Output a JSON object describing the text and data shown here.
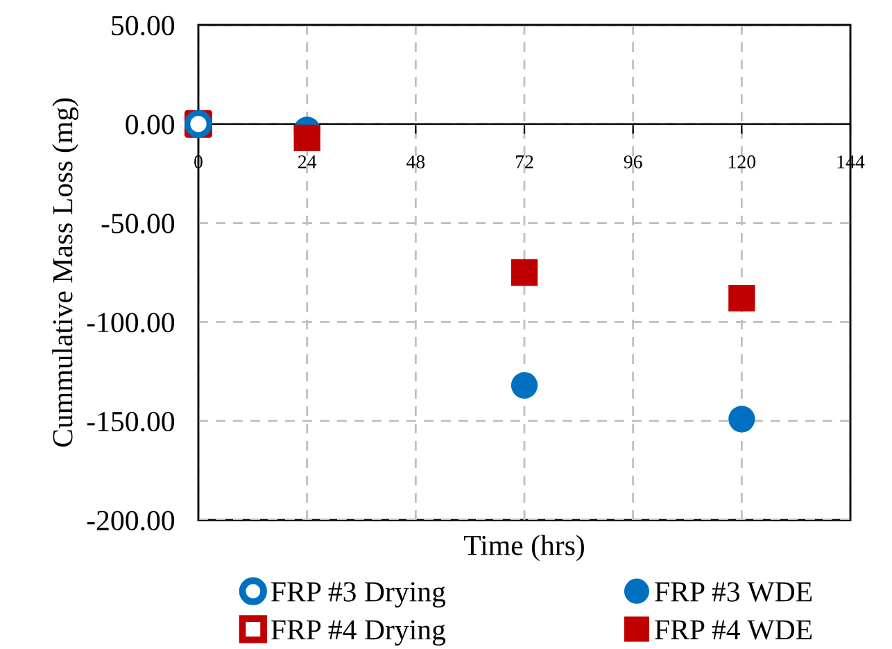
{
  "chart_data": {
    "type": "scatter",
    "xlabel": "Time (hrs)",
    "ylabel": "Cummulative Mass Loss (mg)",
    "xlim": [
      0,
      144
    ],
    "xticks": [
      0,
      24,
      48,
      72,
      96,
      120,
      144
    ],
    "ylim": [
      -200,
      50
    ],
    "yticks": [
      {
        "value": -200,
        "label": "-200.00"
      },
      {
        "value": -150,
        "label": "-150.00"
      },
      {
        "value": -100,
        "label": "-100.00"
      },
      {
        "value": -50,
        "label": "-50.00"
      },
      {
        "value": 0,
        "label": "0.00"
      },
      {
        "value": 50,
        "label": "50.00"
      }
    ],
    "grid": true,
    "legend": "bottom",
    "series": [
      {
        "name": "FRP #3 Drying",
        "color": "#0070c0",
        "marker": "circle",
        "x": [
          0
        ],
        "values": [
          0
        ]
      },
      {
        "name": "FRP #4 Drying",
        "color": "#c00000",
        "marker": "square",
        "x": [
          0
        ],
        "values": [
          0
        ]
      },
      {
        "name": "FRP #3 WDE",
        "color": "#0070c0",
        "marker": "circle",
        "x": [
          24,
          72,
          120
        ],
        "values": [
          -3,
          -132,
          -149
        ]
      },
      {
        "name": "FRP #4 WDE",
        "color": "#c00000",
        "marker": "square",
        "x": [
          24,
          72,
          120
        ],
        "values": [
          -7,
          -75,
          -88
        ]
      }
    ]
  }
}
